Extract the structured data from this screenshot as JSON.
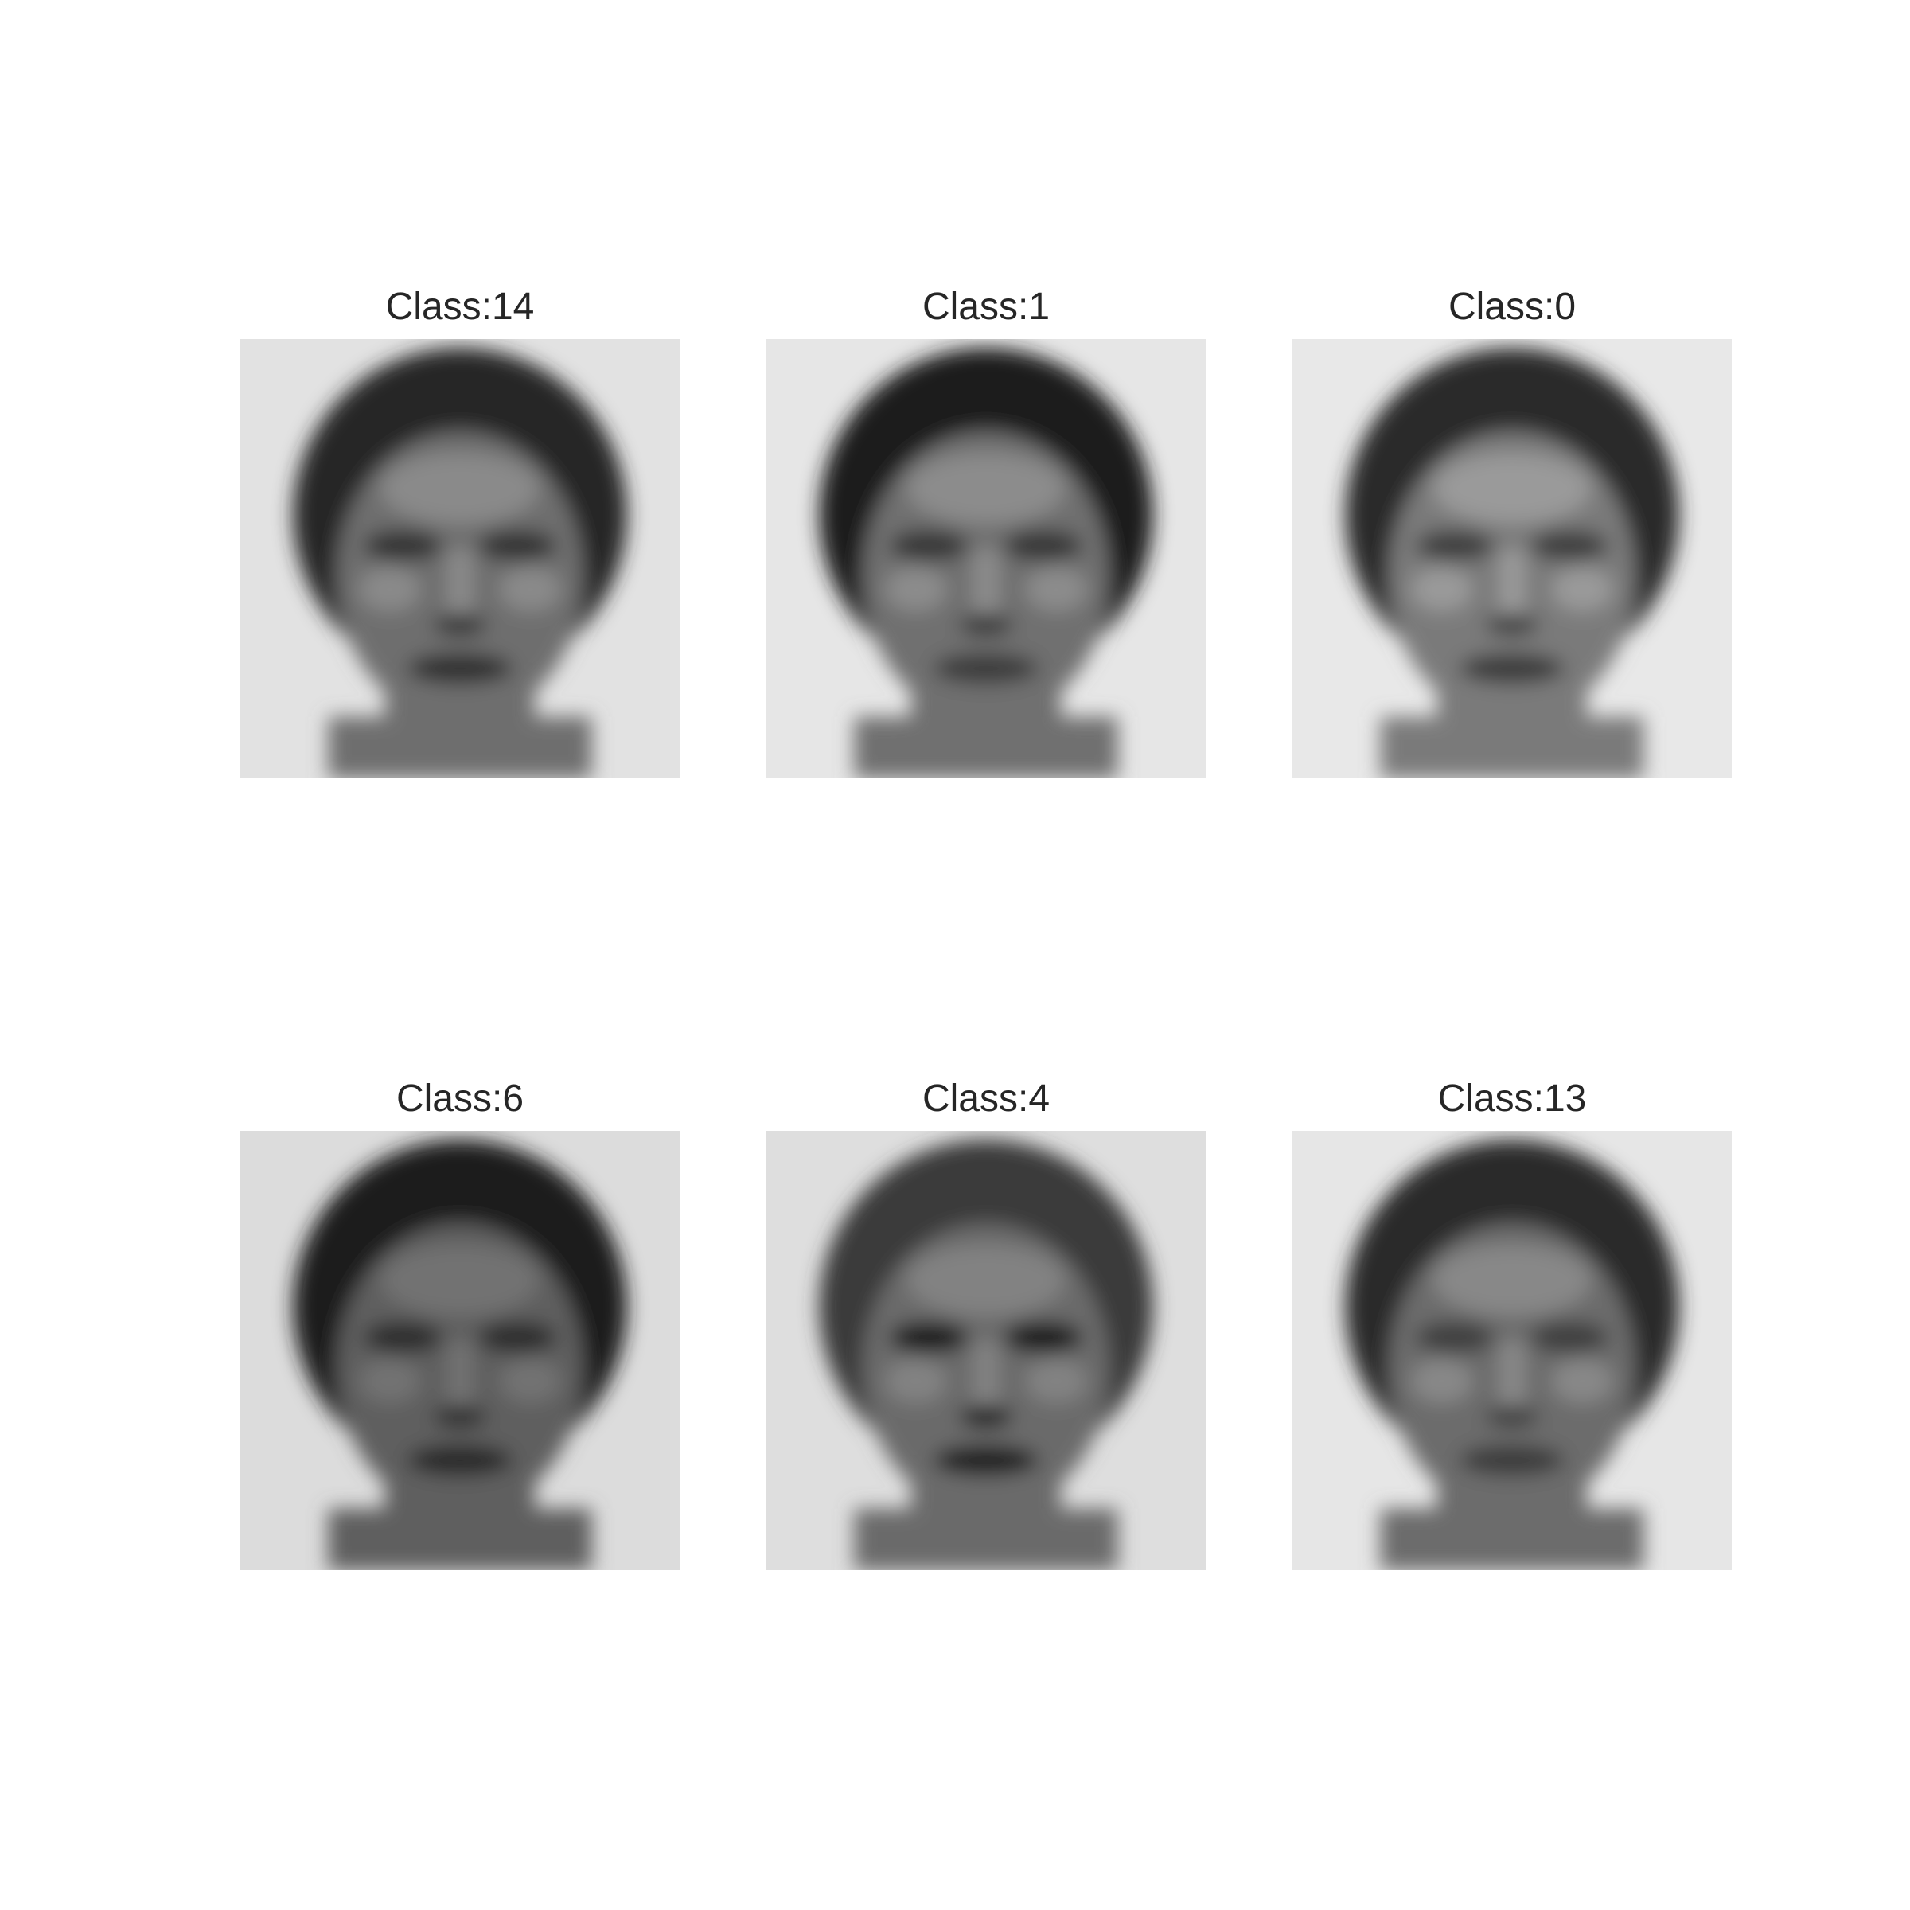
{
  "panels": [
    {
      "title": "Class:14",
      "tone": {
        "hair": "#262626",
        "skin": "#6e6e6e",
        "cheek": "#8a8a8a",
        "eyes": "#303030",
        "mouth": "#2e2e2e",
        "bg": "#e2e2e2"
      }
    },
    {
      "title": "Class:1",
      "tone": {
        "hair": "#1f1f1f",
        "skin": "#707070",
        "cheek": "#8c8c8c",
        "eyes": "#363636",
        "mouth": "#3a3a3a",
        "bg": "#e6e6e6"
      }
    },
    {
      "title": "Class:0",
      "tone": {
        "hair": "#2a2a2a",
        "skin": "#7a7a7a",
        "cheek": "#9a9a9a",
        "eyes": "#3c3c3c",
        "mouth": "#3a3a3a",
        "bg": "#e8e8e8"
      }
    },
    {
      "title": "Class:6",
      "tone": {
        "hair": "#1c1c1c",
        "skin": "#5e5e5e",
        "cheek": "#727272",
        "eyes": "#2a2a2a",
        "mouth": "#262626",
        "bg": "#dcdcdc"
      }
    },
    {
      "title": "Class:4",
      "tone": {
        "hair": "#3a3a3a",
        "skin": "#6a6a6a",
        "cheek": "#828282",
        "eyes": "#141414",
        "mouth": "#1e1e1e",
        "bg": "#dedede"
      }
    },
    {
      "title": "Class:13",
      "tone": {
        "hair": "#2a2a2a",
        "skin": "#6c6c6c",
        "cheek": "#888888",
        "eyes": "#3e3e3e",
        "mouth": "#3a3a3a",
        "bg": "#e6e6e6"
      }
    }
  ]
}
